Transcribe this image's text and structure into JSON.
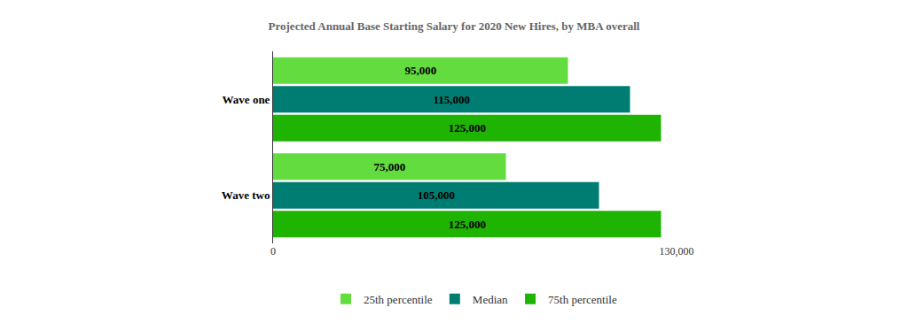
{
  "chart_data": {
    "type": "bar",
    "orientation": "horizontal",
    "title": "Projected Annual Base Starting Salary for 2020 New Hires, by MBA overall",
    "categories": [
      "Wave one",
      "Wave two"
    ],
    "series": [
      {
        "name": "25th percentile",
        "color": "#62dc3e",
        "values": [
          95000,
          75000
        ],
        "value_labels": [
          "95,000",
          "75,000"
        ]
      },
      {
        "name": "Median",
        "color": "#007d72",
        "values": [
          115000,
          105000
        ],
        "value_labels": [
          "115,000",
          "105,000"
        ]
      },
      {
        "name": "75th percentile",
        "color": "#1fb302",
        "values": [
          125000,
          125000
        ],
        "value_labels": [
          "125,000",
          "125,000"
        ]
      }
    ],
    "xlim": [
      0,
      130000
    ],
    "xticks": [
      0,
      {
        "value": 130000,
        "label": "130,000"
      }
    ],
    "grid": true,
    "legend": "bottom",
    "data_labels": true
  }
}
